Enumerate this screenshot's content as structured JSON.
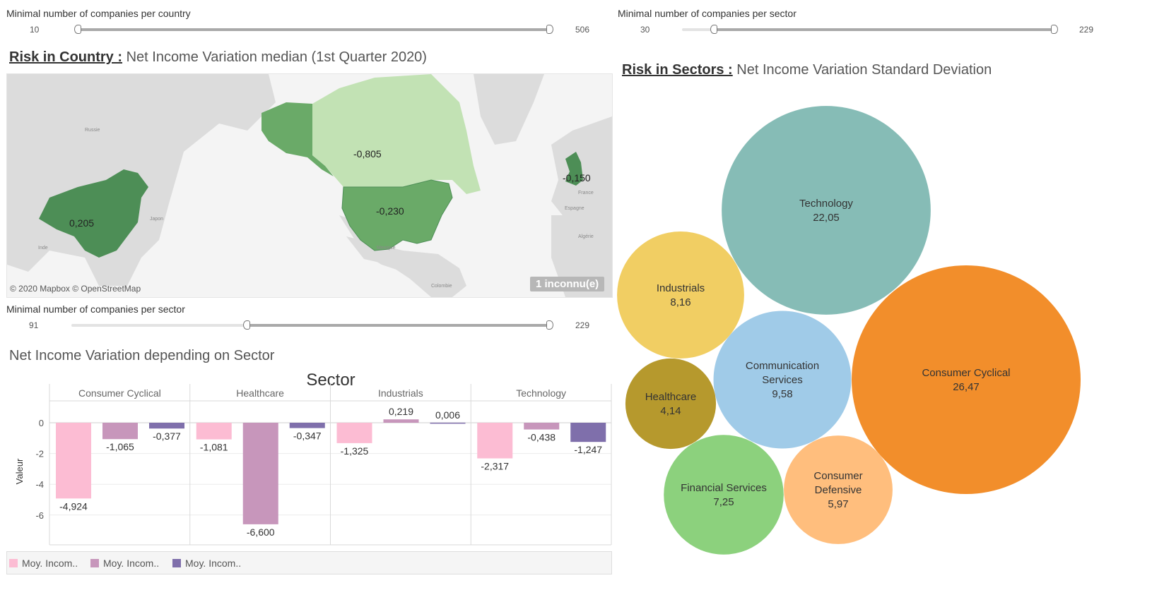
{
  "country_slider": {
    "label": "Minimal number of companies per country",
    "min": "10",
    "max": "506",
    "value": 10
  },
  "sector_slider_top": {
    "label": "Minimal number of companies per sector",
    "min": "30",
    "max": "229",
    "value": 30
  },
  "sector_slider_mid": {
    "label": "Minimal number of companies per sector",
    "min": "91",
    "max": "229",
    "value": 91
  },
  "map_sheet": {
    "title_prefix": "Risk in Country :",
    "title": "Net Income Variation median (1st Quarter 2020)",
    "attribution": "© 2020 Mapbox © OpenStreetMap",
    "unknown_badge": "1 inconnu(e)",
    "regions": [
      {
        "name": "China",
        "value": "0,205",
        "color": "#4d8e56"
      },
      {
        "name": "Canada",
        "value": "-0,805",
        "color": "#c2e2b4"
      },
      {
        "name": "United States",
        "value": "-0,230",
        "color": "#6aaa68"
      },
      {
        "name": "United Kingdom",
        "value": "-0,150",
        "color": "#4d8e56"
      }
    ],
    "place_names": [
      "Russie",
      "Japon",
      "Inde",
      "Mexique",
      "France",
      "Espagne",
      "Algérie",
      "Colombie"
    ]
  },
  "sectors_sheet": {
    "title_prefix": "Risk in Sectors :",
    "title": "Net Income Variation Standard Deviation"
  },
  "bar_sheet": {
    "title": "Net Income Variation depending on Sector",
    "header": "Sector",
    "legend": [
      "Moy. Incom..",
      "Moy. Incom..",
      "Moy. Incom.."
    ]
  },
  "colors": {
    "bar_pink": "#fcbcd3",
    "bar_mauve": "#c796bb",
    "bar_purple": "#7f6fab",
    "map_dark": "#4d8e56",
    "map_mid": "#6aaa68",
    "map_light": "#c2e2b4"
  },
  "chart_data": [
    {
      "type": "bar",
      "title": "Net Income Variation depending on Sector",
      "header": "Sector",
      "ylabel": "Valeur",
      "ylim": [
        -7,
        0.7
      ],
      "yticks": [
        "0",
        "-2",
        "-4",
        "-6"
      ],
      "categories": [
        "Consumer Cyclical",
        "Healthcare",
        "Industrials",
        "Technology"
      ],
      "series": [
        {
          "name": "Moy. Incom..",
          "color": "#fcbcd3",
          "values": [
            -4.924,
            -1.081,
            -1.325,
            -2.317
          ],
          "labels": [
            "-4,924",
            "-1,081",
            "-1,325",
            "-2,317"
          ]
        },
        {
          "name": "Moy. Incom..",
          "color": "#c796bb",
          "values": [
            -1.065,
            -6.6,
            0.219,
            -0.438
          ],
          "labels": [
            "-1,065",
            "-6,600",
            "0,219",
            "-0,438"
          ]
        },
        {
          "name": "Moy. Incom..",
          "color": "#7f6fab",
          "values": [
            -0.377,
            -0.347,
            0.006,
            -1.247
          ],
          "labels": [
            "-0,377",
            "-0,347",
            "0,006",
            "-1,247"
          ]
        }
      ],
      "legend": "bottom",
      "grid": true
    },
    {
      "type": "bubble",
      "title": "Net Income Variation Standard Deviation",
      "items": [
        {
          "name": "Technology",
          "value": 22.05,
          "label": "22,05",
          "lines": [
            "Technology"
          ],
          "color": "#86bcb6"
        },
        {
          "name": "Consumer Cyclical",
          "value": 26.47,
          "label": "26,47",
          "lines": [
            "Consumer Cyclical"
          ],
          "color": "#f28e2b"
        },
        {
          "name": "Industrials",
          "value": 8.16,
          "label": "8,16",
          "lines": [
            "Industrials"
          ],
          "color": "#f1ce63"
        },
        {
          "name": "Communication Services",
          "value": 9.58,
          "label": "9,58",
          "lines": [
            "Communication",
            "Services"
          ],
          "color": "#a0cbe8"
        },
        {
          "name": "Healthcare",
          "value": 4.14,
          "label": "4,14",
          "lines": [
            "Healthcare"
          ],
          "color": "#b6992d"
        },
        {
          "name": "Financial Services",
          "value": 7.25,
          "label": "7,25",
          "lines": [
            "Financial Services"
          ],
          "color": "#8cd17d"
        },
        {
          "name": "Consumer Defensive",
          "value": 5.97,
          "label": "5,97",
          "lines": [
            "Consumer",
            "Defensive"
          ],
          "color": "#ffbe7d"
        }
      ]
    }
  ]
}
